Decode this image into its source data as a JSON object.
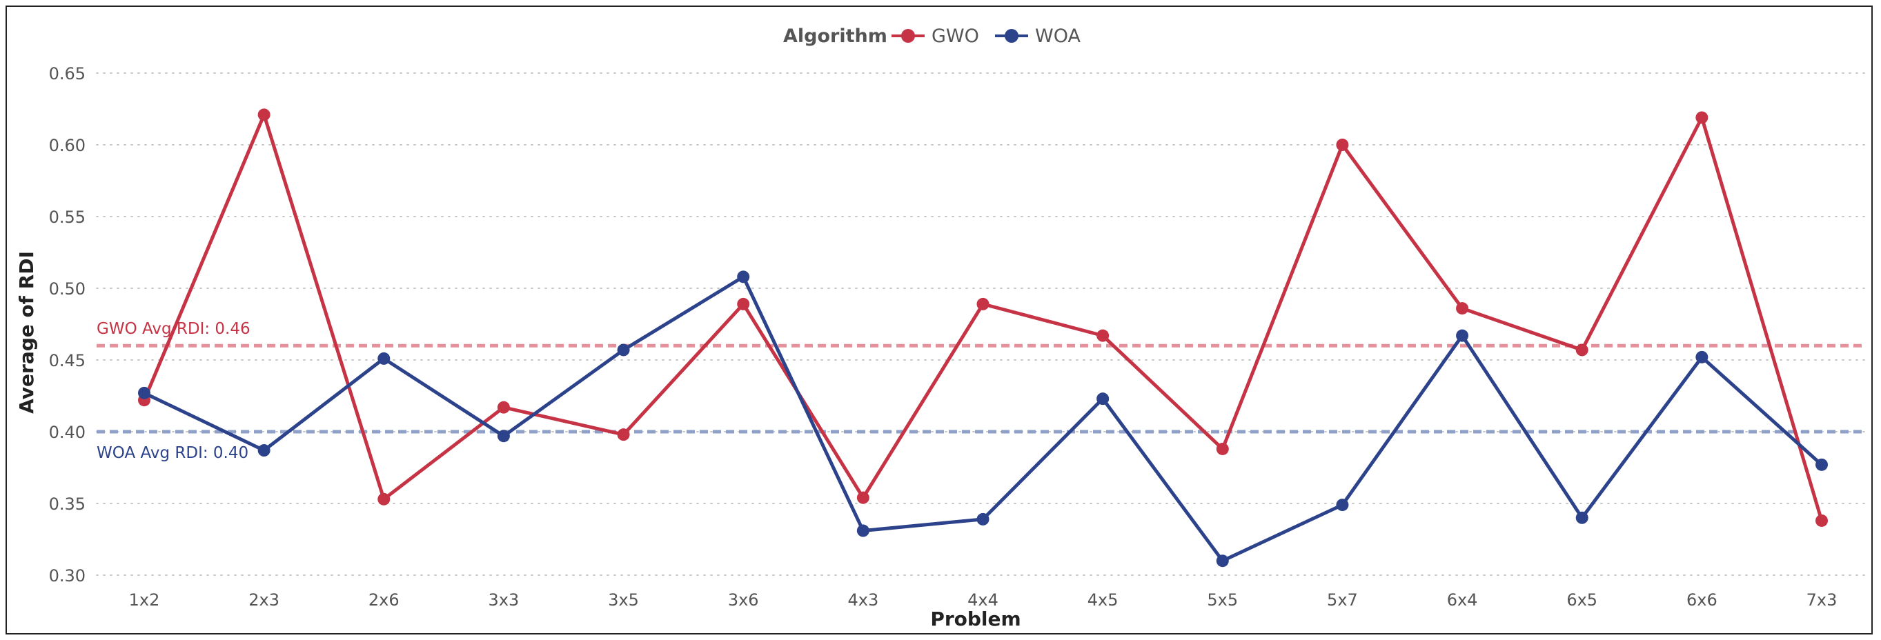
{
  "colors": {
    "gwo": "#c63345",
    "woa": "#2c438b",
    "gwo_ref": "#e6909c",
    "woa_ref": "#8fa0c8",
    "grid": "#c8c8c8"
  },
  "chart_data": {
    "type": "line",
    "title": "",
    "xlabel": "Problem",
    "ylabel": "Average of RDI",
    "ylim": [
      0.3,
      0.65
    ],
    "yticks": [
      "0.30",
      "0.35",
      "0.40",
      "0.45",
      "0.50",
      "0.55",
      "0.60",
      "0.65"
    ],
    "yticks_values": [
      0.3,
      0.35,
      0.4,
      0.45,
      0.5,
      0.55,
      0.6,
      0.65
    ],
    "categories": [
      "1x2",
      "2x3",
      "2x6",
      "3x3",
      "3x5",
      "3x6",
      "4x3",
      "4x4",
      "4x5",
      "5x5",
      "5x7",
      "6x4",
      "6x5",
      "6x6",
      "7x3"
    ],
    "legend": {
      "title": "Algorithm",
      "position": "top-center"
    },
    "series": [
      {
        "name": "GWO",
        "color": "#c63345",
        "values": [
          0.422,
          0.621,
          0.353,
          0.417,
          0.398,
          0.489,
          0.354,
          0.489,
          0.467,
          0.388,
          0.6,
          0.486,
          0.457,
          0.619,
          0.338
        ]
      },
      {
        "name": "WOA",
        "color": "#2c438b",
        "values": [
          0.427,
          0.387,
          0.451,
          0.397,
          0.457,
          0.508,
          0.331,
          0.339,
          0.423,
          0.31,
          0.349,
          0.467,
          0.34,
          0.452,
          0.377
        ]
      }
    ],
    "reference_lines": [
      {
        "label": "GWO Avg RDI: 0.46",
        "value": 0.46,
        "series": "GWO",
        "color": "#e6909c",
        "text_color": "#c63345"
      },
      {
        "label": "WOA Avg RDI: 0.40",
        "value": 0.4,
        "series": "WOA",
        "color": "#8fa0c8",
        "text_color": "#2c438b"
      }
    ]
  }
}
